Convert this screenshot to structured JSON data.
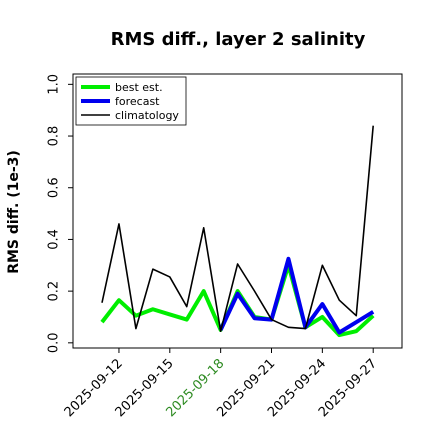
{
  "chart_data": {
    "type": "line",
    "title": "RMS diff., layer 2 salinity",
    "ylabel": "RMS diff. (1e-3)",
    "xlabel": "",
    "x": [
      "2025-09-11",
      "2025-09-12",
      "2025-09-13",
      "2025-09-14",
      "2025-09-15",
      "2025-09-16",
      "2025-09-17",
      "2025-09-18",
      "2025-09-19",
      "2025-09-20",
      "2025-09-21",
      "2025-09-22",
      "2025-09-23",
      "2025-09-24",
      "2025-09-25",
      "2025-09-26",
      "2025-09-27"
    ],
    "xticks": [
      "2025-09-12",
      "2025-09-15",
      "2025-09-18",
      "2025-09-21",
      "2025-09-24",
      "2025-09-27"
    ],
    "highlight_tick": "2025-09-18",
    "yticks": [
      "0.0",
      "0.2",
      "0.4",
      "0.6",
      "0.8",
      "1.0"
    ],
    "ylim": [
      -0.02,
      1.04
    ],
    "legend_position": "top-left",
    "grid": false,
    "series": [
      {
        "name": "best est.",
        "color": "#00ee00",
        "values": [
          0.08,
          0.165,
          0.105,
          0.13,
          0.11,
          0.09,
          0.2,
          0.05,
          0.2,
          0.1,
          0.09,
          0.3,
          0.06,
          0.1,
          0.03,
          0.045,
          0.105
        ]
      },
      {
        "name": "forecast",
        "color": "#0000ee",
        "values": [
          null,
          null,
          null,
          null,
          null,
          null,
          null,
          0.05,
          0.19,
          0.095,
          0.09,
          0.325,
          0.06,
          0.15,
          0.04,
          0.08,
          0.12
        ]
      },
      {
        "name": "climatology",
        "color": "#000000",
        "values": [
          0.155,
          0.46,
          0.055,
          0.285,
          0.255,
          0.14,
          0.445,
          0.045,
          0.305,
          0.2,
          0.09,
          0.06,
          0.055,
          0.3,
          0.165,
          0.105,
          0.84
        ]
      }
    ]
  }
}
